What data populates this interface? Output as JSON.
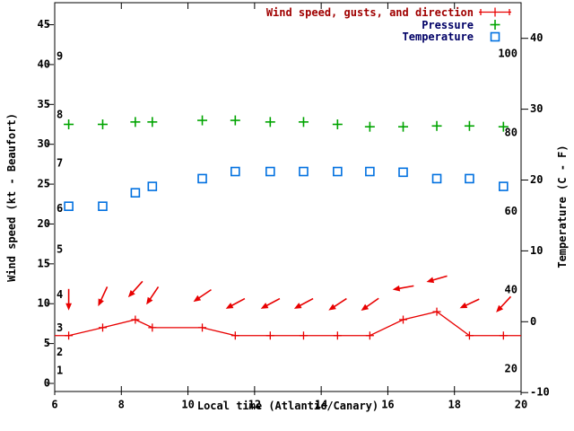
{
  "colors": {
    "wind": "#e80000",
    "pressure": "#00a400",
    "temperature": "#0070e0",
    "axis": "#000000",
    "wind_legend_text": "#a00000",
    "other_legend_text": "#000066"
  },
  "legend": {
    "entries": [
      {
        "label": "Wind speed, gusts, and direction",
        "series": "wind"
      },
      {
        "label": "Pressure",
        "series": "pressure"
      },
      {
        "label": "Temperature",
        "series": "temperature"
      }
    ]
  },
  "axes": {
    "x": {
      "title": "Local time (Atlantic/Canary)",
      "ticks": [
        6,
        8,
        10,
        12,
        14,
        16,
        18,
        20
      ],
      "range": [
        6,
        20
      ]
    },
    "left": {
      "title": "Wind speed (kt - Beaufort)",
      "ticks": [
        0,
        5,
        10,
        15,
        20,
        25,
        30,
        35,
        40,
        45
      ],
      "beaufort_labels": [
        {
          "label": "1",
          "kt": 1.6
        },
        {
          "label": "2",
          "kt": 3.9
        },
        {
          "label": "3",
          "kt": 6.9
        },
        {
          "label": "4",
          "kt": 11.1
        },
        {
          "label": "5",
          "kt": 16.8
        },
        {
          "label": "6",
          "kt": 21.9
        },
        {
          "label": "7",
          "kt": 27.6
        },
        {
          "label": "8",
          "kt": 33.7
        },
        {
          "label": "9",
          "kt": 41.0
        }
      ]
    },
    "right": {
      "title": "Temperature (C - F)",
      "ticks_c": [
        -10,
        0,
        10,
        20,
        30,
        40
      ],
      "fahrenheit_labels": [
        20,
        40,
        60,
        80,
        100
      ]
    }
  },
  "chart_data": {
    "type": "line",
    "x_axis": "local time (hours, Atlantic/Canary)",
    "x_hours": [
      6.42,
      7.44,
      8.42,
      8.93,
      10.43,
      11.42,
      12.47,
      13.47,
      14.49,
      15.46,
      16.46,
      17.47,
      18.45,
      19.47
    ],
    "series": [
      {
        "name": "Wind speed, gusts, and direction",
        "unit": "kt",
        "marker": "plus-on-line",
        "color_key": "wind",
        "values_kt": [
          6,
          7,
          8,
          7,
          7,
          6,
          6,
          6,
          6,
          6,
          8,
          9,
          6,
          6
        ],
        "line_extends_to_plot_borders_at_kt": 6,
        "direction_from_deg": [
          0,
          25,
          42,
          34,
          56,
          62,
          62,
          62,
          57,
          55,
          80,
          74,
          65,
          43
        ],
        "arrow_center_level_kt": [
          10.5,
          10.9,
          11.8,
          11.0,
          11.0,
          10.0,
          10.0,
          10.0,
          9.9,
          9.9,
          12.0,
          13.1,
          10.0,
          9.9
        ]
      },
      {
        "name": "Pressure",
        "marker": "plus",
        "color_key": "pressure",
        "axis": "none shown on plot",
        "plotted_level_in_left_axis_units": [
          32.5,
          32.5,
          32.8,
          32.8,
          33.0,
          33.0,
          32.8,
          32.8,
          32.5,
          32.2,
          32.2,
          32.3,
          32.3,
          32.2
        ]
      },
      {
        "name": "Temperature",
        "unit": "C",
        "marker": "open-square",
        "color_key": "temperature",
        "values_c": [
          16.3,
          16.3,
          18.2,
          19.1,
          20.2,
          21.2,
          21.2,
          21.2,
          21.2,
          21.2,
          21.1,
          20.2,
          20.2,
          19.1
        ]
      }
    ],
    "grid": false,
    "legend_position": "top-right inside header band"
  }
}
